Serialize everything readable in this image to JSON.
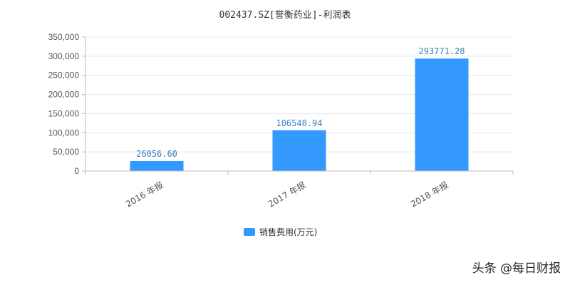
{
  "chart_data": {
    "type": "bar",
    "title": "002437.SZ[誉衡药业]-利润表",
    "categories": [
      "2016 年报",
      "2017 年报",
      "2018 年报"
    ],
    "series": [
      {
        "name": "销售费用(万元)",
        "values": [
          26056.6,
          106548.94,
          293771.28
        ],
        "labels": [
          "26056.60",
          "106548.94",
          "293771.28"
        ]
      }
    ],
    "ylim": [
      0,
      350000
    ],
    "yticks": [
      0,
      50000,
      100000,
      150000,
      200000,
      250000,
      300000,
      350000
    ],
    "ytick_labels": [
      "0",
      "50,000",
      "100,000",
      "150,000",
      "200,000",
      "250,000",
      "300,000",
      "350,000"
    ],
    "grid": true,
    "legend_position": "bottom-center",
    "colors": {
      "bar": "#3399ff",
      "label": "#3a7fc0",
      "grid": "#e8e8e8",
      "axis": "#bbbbbb"
    }
  },
  "watermark": "头条 @每日财报"
}
